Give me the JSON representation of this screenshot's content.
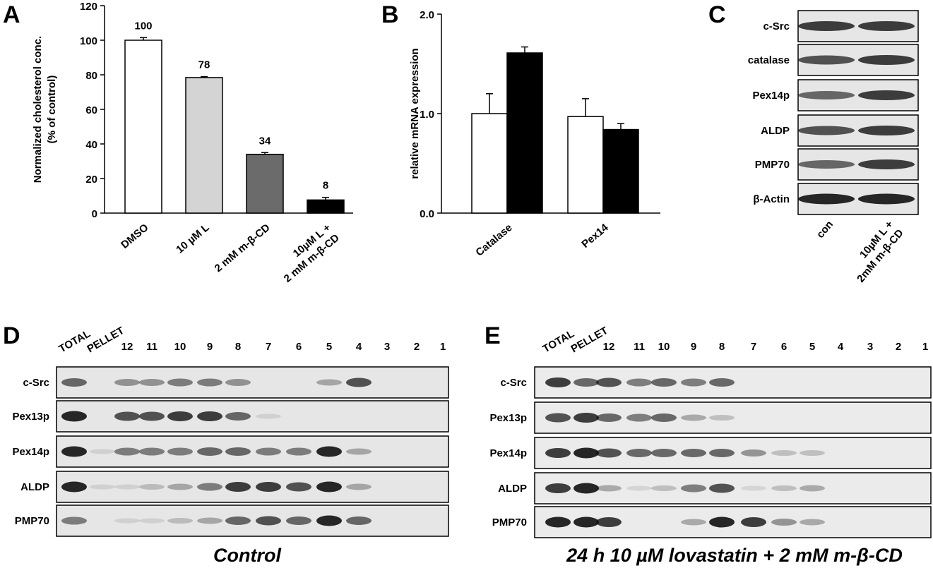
{
  "chart_data": [
    {
      "type": "bar",
      "panel_label": "A",
      "ylabel": "Normalized cholesterol conc.\n(% of control)",
      "categories": [
        "DMSO",
        "10 µM L",
        "2 mM m-β-CD",
        "10µM L +\n2 mM m-β-CD"
      ],
      "values": [
        100,
        78.4,
        34,
        7.6
      ],
      "errors": [
        1.5,
        0.5,
        1,
        1.5
      ],
      "value_labels": [
        "100",
        "78",
        "34",
        "8"
      ],
      "colors": [
        "#ffffff",
        "#d4d4d4",
        "#6b6b6b",
        "#000000"
      ],
      "ylim": [
        0,
        120
      ],
      "yticks": [
        0,
        20,
        40,
        60,
        80,
        100,
        120
      ]
    },
    {
      "type": "grouped-bar",
      "panel_label": "B",
      "ylabel": "relative mRNA expression",
      "categories": [
        "Catalase",
        "Pex14"
      ],
      "series": [
        {
          "color": "#ffffff",
          "values": [
            1.0,
            0.97
          ],
          "errors": [
            0.2,
            0.18
          ]
        },
        {
          "color": "#000000",
          "values": [
            1.61,
            0.84
          ],
          "errors": [
            0.06,
            0.06
          ]
        }
      ],
      "ylim": [
        0,
        2.0
      ],
      "yticks": [
        {
          "value": 0,
          "label": "0.0"
        },
        {
          "value": 1,
          "label": "1.0"
        },
        {
          "value": 2,
          "label": "2.0"
        }
      ]
    }
  ],
  "blots": {
    "C": {
      "panel_label": "C",
      "rows": [
        "c-Src",
        "catalase",
        "Pex14p",
        "ALDP",
        "PMP70",
        "β-Actin"
      ],
      "lanes": [
        "con",
        "10µM L +\n2mM m-β-CD"
      ]
    },
    "D": {
      "panel_label": "D",
      "rows": [
        "c-Src",
        "Pex13p",
        "Pex14p",
        "ALDP",
        "PMP70"
      ],
      "lanes": [
        "TOTAL",
        "PELLET",
        "12",
        "11",
        "10",
        "9",
        "8",
        "7",
        "6",
        "5",
        "4",
        "3",
        "2",
        "1"
      ],
      "caption": "Control"
    },
    "E": {
      "panel_label": "E",
      "rows": [
        "c-Src",
        "Pex13p",
        "Pex14p",
        "ALDP",
        "PMP70"
      ],
      "lanes": [
        "TOTAL",
        "PELLET",
        "12",
        "11",
        "10",
        "9",
        "8",
        "7",
        "6",
        "5",
        "4",
        "3",
        "2",
        "1"
      ],
      "caption": "24 h 10 µM lovastatin + 2 mM m-β-CD"
    }
  }
}
